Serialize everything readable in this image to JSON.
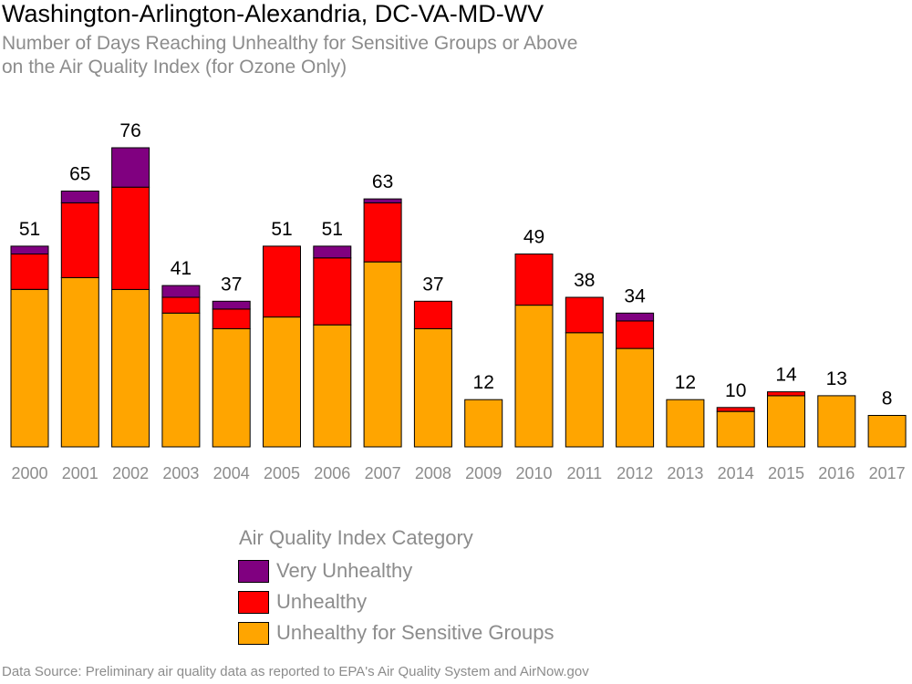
{
  "chart_data": {
    "type": "bar",
    "stacked": true,
    "title": "Washington-Arlington-Alexandria, DC-VA-MD-WV",
    "subtitle": [
      "Number of Days Reaching Unhealthy for Sensitive Groups or Above",
      "on the Air Quality Index (for Ozone Only)"
    ],
    "xlabel": "",
    "ylabel": "",
    "ylim": [
      0,
      76
    ],
    "grid": false,
    "categories": [
      "2000",
      "2001",
      "2002",
      "2003",
      "2004",
      "2005",
      "2006",
      "2007",
      "2008",
      "2009",
      "2010",
      "2011",
      "2012",
      "2013",
      "2014",
      "2015",
      "2016",
      "2017"
    ],
    "totals": [
      51,
      65,
      76,
      41,
      37,
      51,
      51,
      63,
      37,
      12,
      49,
      38,
      34,
      12,
      10,
      14,
      13,
      8
    ],
    "series": [
      {
        "name": "Unhealthy for Sensitive Groups",
        "color": "#ffa500",
        "values": [
          40,
          43,
          40,
          34,
          30,
          33,
          31,
          47,
          30,
          12,
          36,
          29,
          25,
          12,
          9,
          13,
          13,
          8
        ]
      },
      {
        "name": "Unhealthy",
        "color": "#ff0000",
        "values": [
          9,
          19,
          26,
          4,
          5,
          18,
          17,
          15,
          7,
          0,
          13,
          9,
          7,
          0,
          1,
          1,
          0,
          0
        ]
      },
      {
        "name": "Very Unhealthy",
        "color": "#800080",
        "values": [
          2,
          3,
          10,
          3,
          2,
          0,
          3,
          1,
          0,
          0,
          0,
          0,
          2,
          0,
          0,
          0,
          0,
          0
        ]
      }
    ],
    "legend": {
      "title": "Air Quality Index Category",
      "position": "bottom",
      "items": [
        {
          "label": "Very Unhealthy",
          "color": "#800080"
        },
        {
          "label": "Unhealthy",
          "color": "#ff0000"
        },
        {
          "label": "Unhealthy for Sensitive Groups",
          "color": "#ffa500"
        }
      ]
    },
    "source": "Data Source: Preliminary air quality data as reported to EPA's Air Quality System and AirNow.gov"
  }
}
